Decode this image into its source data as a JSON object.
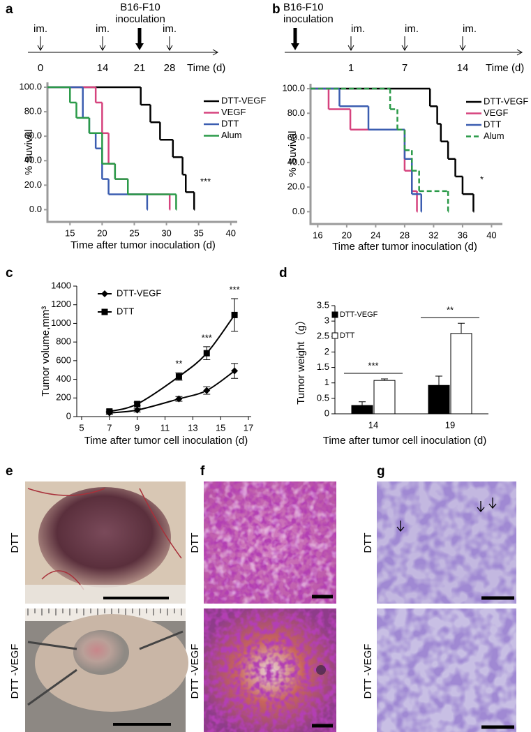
{
  "panels": [
    "a",
    "b",
    "c",
    "d",
    "e",
    "f",
    "g"
  ],
  "timelines": [
    {
      "events": [
        {
          "day": "0",
          "label": "im."
        },
        {
          "day": "14",
          "label": "im."
        },
        {
          "day": "21",
          "label": "B16-F10 inoculation"
        },
        {
          "day": "28",
          "label": "im."
        }
      ],
      "axis_title": "Time (d)"
    },
    {
      "events": [
        {
          "day": null,
          "label": "B16-F10 inoculation"
        },
        {
          "day": "1",
          "label": "im."
        },
        {
          "day": "7",
          "label": "im."
        },
        {
          "day": "14",
          "label": "im."
        }
      ],
      "axis_title": "Time (d)"
    }
  ],
  "chart_data": [
    {
      "type": "step",
      "xlabel": "Time after tumor inoculation (d)",
      "ylabel": "% Suvival",
      "xlim": [
        11.5,
        41
      ],
      "xticks": [
        15,
        20,
        25,
        30,
        35,
        40
      ],
      "ylim": [
        -10,
        104
      ],
      "yticks": [
        {
          "value": 0,
          "label": "0.0"
        },
        {
          "value": 20,
          "label": "20.0"
        },
        {
          "value": 40,
          "label": "40.0"
        },
        {
          "value": 60,
          "label": "60.0"
        },
        {
          "value": 80,
          "label": "80.0"
        },
        {
          "value": 100,
          "label": "100.0"
        }
      ],
      "series": [
        {
          "name": "DTT-VEGF",
          "color": "#000000",
          "x": [
            11.5,
            26,
            27.5,
            29,
            31,
            32.5,
            33,
            34.3
          ],
          "values": [
            100,
            85.7,
            71.4,
            57.1,
            42.9,
            28.6,
            14.3,
            0
          ]
        },
        {
          "name": "VEGF",
          "color": "#d6437e",
          "x": [
            11.5,
            19,
            20,
            21,
            22,
            24,
            30.5
          ],
          "values": [
            100,
            87.5,
            62.5,
            37.5,
            25,
            12.5,
            0
          ]
        },
        {
          "name": "DTT",
          "color": "#3b5db0",
          "x": [
            11.5,
            17,
            18,
            19,
            20,
            21,
            27
          ],
          "values": [
            100,
            75,
            62.5,
            50,
            25,
            12.5,
            0
          ]
        },
        {
          "name": "Alum",
          "color": "#2a9a48",
          "x": [
            11.5,
            15,
            16,
            18,
            20,
            22,
            24,
            31.5
          ],
          "values": [
            100,
            87.5,
            75,
            62.5,
            37.5,
            25,
            12.5,
            0
          ]
        }
      ],
      "annotations": [
        "***"
      ]
    },
    {
      "type": "step",
      "xlabel": "Time after tumor inoculation (d)",
      "ylabel": "% Suvival",
      "xlim": [
        15,
        41.5
      ],
      "xticks": [
        16,
        20,
        24,
        28,
        32,
        36,
        40
      ],
      "ylim": [
        -10,
        104
      ],
      "yticks": [
        {
          "value": 0,
          "label": "0.0"
        },
        {
          "value": 20,
          "label": "20.0"
        },
        {
          "value": 40,
          "label": "40.0"
        },
        {
          "value": 60,
          "label": "60.0"
        },
        {
          "value": 80,
          "label": "80.0"
        },
        {
          "value": 100,
          "label": "100.0"
        }
      ],
      "series": [
        {
          "name": "DTT-VEGF",
          "color": "#000000",
          "x": [
            15,
            31.5,
            32.5,
            33,
            34,
            35,
            36,
            37.5
          ],
          "values": [
            100,
            85.7,
            71.4,
            57.1,
            42.9,
            28.6,
            14.3,
            0
          ]
        },
        {
          "name": "VEGF",
          "color": "#d6437e",
          "x": [
            15,
            17.5,
            20.5,
            28,
            29,
            29.7
          ],
          "values": [
            100,
            83.3,
            66.7,
            33.3,
            16.7,
            0
          ]
        },
        {
          "name": "DTT",
          "color": "#3b5db0",
          "x": [
            15,
            19,
            23,
            28,
            29,
            30.3
          ],
          "values": [
            100,
            85.7,
            66.7,
            42.9,
            14.3,
            0
          ]
        },
        {
          "name": "Alum",
          "color": "#2a9a48",
          "dash": true,
          "x": [
            15,
            26,
            27,
            28,
            29,
            30,
            34
          ],
          "values": [
            100,
            83.3,
            66.7,
            50,
            33.3,
            16.7,
            0
          ]
        }
      ],
      "annotations": [
        "*"
      ]
    },
    {
      "type": "line",
      "xlabel": "Time after tumor cell inoculation (d)",
      "ylabel": "Tumor volume,mm³",
      "x": [
        7,
        9,
        12,
        14,
        16
      ],
      "xlim": [
        4.65,
        17.2
      ],
      "xticks": [
        5,
        7,
        9,
        11,
        13,
        15,
        17
      ],
      "ylim": [
        0,
        1400
      ],
      "yticks": [
        0,
        200,
        400,
        600,
        800,
        1000,
        1200,
        1400
      ],
      "series": [
        {
          "name": "DTT-VEGF",
          "color": "#000000",
          "marker": "diamond",
          "values": [
            40,
            70,
            190,
            280,
            490
          ],
          "errors": [
            15,
            20,
            25,
            40,
            80
          ]
        },
        {
          "name": "DTT",
          "color": "#000000",
          "marker": "square",
          "values": [
            55,
            135,
            430,
            680,
            1090
          ],
          "errors": [
            15,
            20,
            40,
            70,
            175
          ]
        }
      ],
      "annotations": [
        "**",
        "***",
        "***"
      ]
    },
    {
      "type": "bar",
      "xlabel": "Time after tumor cell inoculation (d)",
      "ylabel": "Tumor weight（g）",
      "categories": [
        "14",
        "19"
      ],
      "ylim": [
        0,
        3.5
      ],
      "yticks": [
        0,
        0.5,
        1,
        1.5,
        2,
        2.5,
        3,
        3.5
      ],
      "series": [
        {
          "name": "DTT-VEGF",
          "color": "#000000",
          "values": [
            0.27,
            0.92
          ],
          "errors": [
            0.12,
            0.3
          ]
        },
        {
          "name": "DTT",
          "color": "#ffffff",
          "values": [
            1.08,
            2.6
          ],
          "errors": [
            0.05,
            0.33
          ]
        }
      ],
      "annotations": [
        "***",
        "**"
      ]
    }
  ],
  "images": [
    {
      "rows": [
        "DTT",
        "DTT -VEGF"
      ]
    },
    {
      "rows": [
        "DTT",
        "DTT -VEGF"
      ]
    },
    {
      "rows": [
        "DTT",
        "DTT -VEGF"
      ]
    }
  ]
}
